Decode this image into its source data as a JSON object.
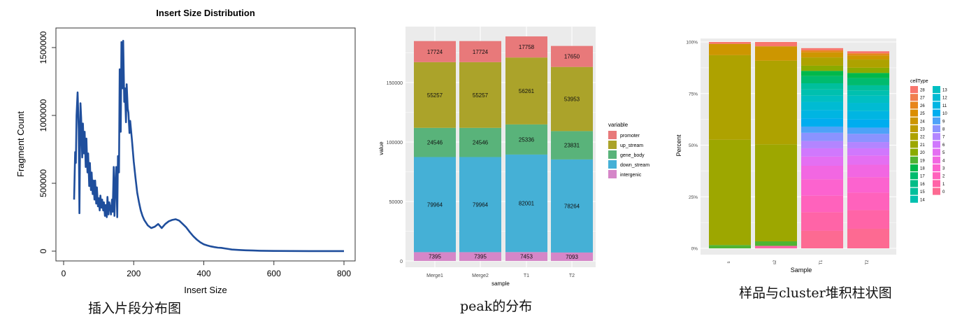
{
  "chart_data": [
    {
      "type": "line",
      "title": "Insert Size Distribution",
      "xlabel": "Insert Size",
      "ylabel": "Fragment Count",
      "xlim": [
        0,
        800
      ],
      "ylim": [
        0,
        1650000
      ],
      "x_ticks": [
        "0",
        "200",
        "400",
        "600",
        "800"
      ],
      "y_ticks": [
        "0",
        "500000",
        "1000000",
        "1500000"
      ],
      "color": "#1f4e9c",
      "series": [
        {
          "x": [
            30,
            33,
            35,
            37,
            40,
            43,
            45,
            48,
            50,
            53,
            55,
            58,
            60,
            63,
            65,
            68,
            70,
            73,
            75,
            78,
            80,
            83,
            85,
            88,
            90,
            93,
            95,
            98,
            100,
            103,
            105,
            108,
            110,
            113,
            115,
            118,
            120,
            123,
            125,
            128,
            130,
            133,
            135,
            138,
            140,
            143,
            145,
            148,
            150,
            153,
            155,
            158,
            160,
            163,
            165,
            168,
            170,
            173,
            175,
            178,
            180,
            183,
            185,
            188,
            190,
            195,
            200,
            205,
            210,
            215,
            220,
            225,
            230,
            240,
            250,
            260,
            270,
            280,
            290,
            300,
            310,
            320,
            330,
            340,
            350,
            360,
            370,
            380,
            390,
            400,
            410,
            420,
            430,
            440,
            450,
            460,
            470,
            480,
            500,
            520,
            540,
            560,
            580,
            600,
            650,
            700,
            750,
            800
          ],
          "y": [
            380000,
            730000,
            650000,
            1000000,
            1170000,
            900000,
            280000,
            1090000,
            980000,
            690000,
            940000,
            720000,
            880000,
            620000,
            830000,
            580000,
            720000,
            480000,
            650000,
            450000,
            580000,
            420000,
            520000,
            380000,
            520000,
            350000,
            470000,
            330000,
            390000,
            300000,
            410000,
            320000,
            380000,
            300000,
            360000,
            260000,
            340000,
            250000,
            400000,
            270000,
            360000,
            320000,
            270000,
            380000,
            290000,
            620000,
            260000,
            500000,
            620000,
            250000,
            700000,
            580000,
            1340000,
            880000,
            1540000,
            1200000,
            1550000,
            1100000,
            1200000,
            950000,
            1230000,
            1050000,
            1020000,
            870000,
            960000,
            820000,
            660000,
            540000,
            430000,
            360000,
            300000,
            260000,
            230000,
            190000,
            170000,
            180000,
            200000,
            170000,
            200000,
            220000,
            230000,
            235000,
            225000,
            200000,
            175000,
            140000,
            110000,
            85000,
            65000,
            50000,
            42000,
            35000,
            30000,
            26000,
            24000,
            20000,
            16000,
            12000,
            9000,
            6000,
            4500,
            3000,
            2000,
            1500,
            900,
            600,
            400,
            300
          ],
          "name": ""
        }
      ]
    },
    {
      "type": "bar",
      "stacked": true,
      "xlabel": "sample",
      "ylabel": "value",
      "categories": [
        "Merge1",
        "Merge2",
        "T1",
        "T2"
      ],
      "ylim": [
        0,
        190000
      ],
      "y_ticks": [
        "0",
        "50000",
        "100000",
        "150000"
      ],
      "legend_title": "variable",
      "legend_position": "right",
      "grid": true,
      "series": [
        {
          "name": "promoter",
          "color": "#e8797a",
          "values": [
            17724,
            17724,
            17758,
            17650
          ]
        },
        {
          "name": "up_stream",
          "color": "#aba32a",
          "values": [
            55257,
            55257,
            56261,
            53953
          ]
        },
        {
          "name": "gene_body",
          "color": "#59b37a",
          "values": [
            24546,
            24546,
            25336,
            23831
          ]
        },
        {
          "name": "down_stream",
          "color": "#45b0d6",
          "values": [
            79964,
            79964,
            82001,
            78264
          ]
        },
        {
          "name": "intergenic",
          "color": "#d586c8",
          "values": [
            7395,
            7395,
            7453,
            7093
          ]
        }
      ]
    },
    {
      "type": "bar",
      "stacked": true,
      "percent": true,
      "xlabel": "Sample",
      "ylabel": "Percent",
      "categories": [
        "s",
        "s2",
        "T1",
        "T2"
      ],
      "y_ticks": [
        "0%",
        "25%",
        "50%",
        "75%",
        "100%"
      ],
      "legend_title": "cellType",
      "legend_position": "right",
      "legend_col1": [
        "28",
        "27",
        "26",
        "25",
        "24",
        "23",
        "22",
        "21",
        "20",
        "19",
        "18",
        "17",
        "16",
        "15",
        "14"
      ],
      "legend_col2": [
        "13",
        "12",
        "11",
        "10",
        "9",
        "8",
        "7",
        "6",
        "5",
        "4",
        "3",
        "2",
        "1",
        "0"
      ],
      "legend_colors": {
        "28": "#f8766d",
        "27": "#f07f4f",
        "26": "#e7861b",
        "25": "#db8e00",
        "24": "#cd9600",
        "23": "#be9c00",
        "22": "#aea200",
        "21": "#9da700",
        "20": "#8aab00",
        "19": "#4fb433",
        "18": "#00b84b",
        "17": "#00bb6e",
        "16": "#00bd87",
        "15": "#00bf9c",
        "14": "#00c0af",
        "13": "#00bfc2",
        "12": "#00bbd3",
        "11": "#00b5e2",
        "10": "#00adef",
        "9": "#4ea2f8",
        "8": "#8b93ff",
        "7": "#b385ff",
        "6": "#d078fd",
        "5": "#e46ff2",
        "4": "#f267e2",
        "3": "#fc63cf",
        "2": "#ff62bc",
        "1": "#ff64a7",
        "0": "#fd6a92"
      },
      "series_stack": {
        "s": [
          [
            "19",
            0.016
          ],
          [
            "21",
            0.51
          ],
          [
            "22",
            0.41
          ],
          [
            "24",
            0.055
          ],
          [
            "28",
            0.009
          ]
        ],
        "s2": [
          [
            "1",
            0.012
          ],
          [
            "19",
            0.022
          ],
          [
            "21",
            0.47
          ],
          [
            "22",
            0.405
          ],
          [
            "24",
            0.07
          ],
          [
            "28",
            0.021
          ]
        ],
        "T1": [
          [
            "0",
            0.085
          ],
          [
            "1",
            0.09
          ],
          [
            "2",
            0.08
          ],
          [
            "3",
            0.08
          ],
          [
            "4",
            0.065
          ],
          [
            "5",
            0.045
          ],
          [
            "6",
            0.04
          ],
          [
            "7",
            0.035
          ],
          [
            "8",
            0.04
          ],
          [
            "9",
            0.03
          ],
          [
            "10",
            0.04
          ],
          [
            "11",
            0.04
          ],
          [
            "12",
            0.04
          ],
          [
            "13",
            0.03
          ],
          [
            "14",
            0.03
          ],
          [
            "15",
            0.03
          ],
          [
            "17",
            0.035
          ],
          [
            "18",
            0.025
          ],
          [
            "20",
            0.025
          ],
          [
            "22",
            0.04
          ],
          [
            "24",
            0.025
          ],
          [
            "26",
            0.01
          ],
          [
            "28",
            0.01
          ]
        ],
        "T2": [
          [
            "0",
            0.095
          ],
          [
            "1",
            0.09
          ],
          [
            "2",
            0.085
          ],
          [
            "3",
            0.075
          ],
          [
            "4",
            0.06
          ],
          [
            "5",
            0.045
          ],
          [
            "6",
            0.035
          ],
          [
            "7",
            0.03
          ],
          [
            "8",
            0.04
          ],
          [
            "9",
            0.03
          ],
          [
            "10",
            0.04
          ],
          [
            "11",
            0.04
          ],
          [
            "12",
            0.04
          ],
          [
            "13",
            0.035
          ],
          [
            "14",
            0.025
          ],
          [
            "15",
            0.025
          ],
          [
            "17",
            0.035
          ],
          [
            "18",
            0.025
          ],
          [
            "20",
            0.025
          ],
          [
            "22",
            0.04
          ],
          [
            "24",
            0.02
          ],
          [
            "26",
            0.01
          ],
          [
            "28",
            0.01
          ]
        ]
      }
    }
  ],
  "captions": {
    "p1": "插入片段分布图",
    "p2": "peak的分布",
    "p3": "样品与cluster堆积柱状图"
  }
}
